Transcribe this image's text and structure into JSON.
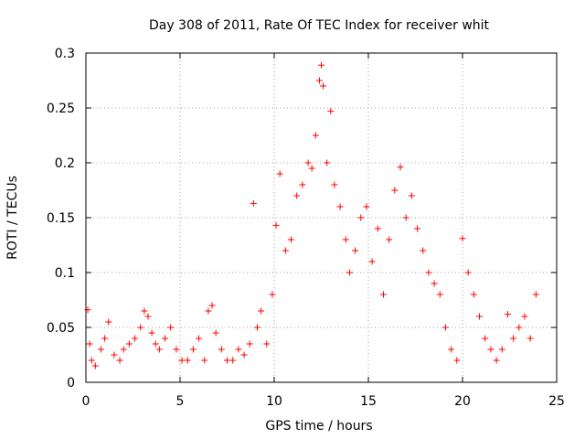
{
  "chart_data": {
    "type": "scatter",
    "title": "Day 308 of 2011, Rate Of TEC Index for receiver whit",
    "xlabel": "GPS time / hours",
    "ylabel": "ROTI / TECUs",
    "xlim": [
      0,
      25
    ],
    "ylim": [
      0,
      0.3
    ],
    "x_ticks": [
      "0",
      "5",
      "10",
      "15",
      "20",
      "25"
    ],
    "y_ticks": [
      "0",
      "0.05",
      "0.1",
      "0.15",
      "0.2",
      "0.25",
      "0.3"
    ],
    "grid": true,
    "marker": "+",
    "color": "#ff0000",
    "series": [
      {
        "x": [
          0.1,
          0.2,
          0.3,
          0.5,
          0.8,
          1.0,
          1.2,
          1.5,
          1.8,
          2.0,
          2.3,
          2.6,
          2.9,
          3.1,
          3.3,
          3.5,
          3.7,
          3.9,
          4.2,
          4.5,
          4.8,
          5.1,
          5.4,
          5.7,
          6.0,
          6.3,
          6.5,
          6.7,
          6.9,
          7.2,
          7.5,
          7.8,
          8.1,
          8.4,
          8.7,
          8.9,
          9.1,
          9.3,
          9.6,
          9.9,
          10.1,
          10.3,
          10.6,
          10.9,
          11.2,
          11.5,
          11.8,
          12.0,
          12.2,
          12.4,
          12.5,
          12.6,
          12.8,
          13.0,
          13.2,
          13.5,
          13.8,
          14.0,
          14.3,
          14.6,
          14.9,
          15.2,
          15.5,
          15.8,
          16.1,
          16.4,
          16.7,
          17.0,
          17.3,
          17.6,
          17.9,
          18.2,
          18.5,
          18.8,
          19.1,
          19.4,
          19.7,
          20.0,
          20.3,
          20.6,
          20.9,
          21.2,
          21.5,
          21.8,
          22.1,
          22.4,
          22.7,
          23.0,
          23.3,
          23.6,
          23.9
        ],
        "y": [
          0.066,
          0.035,
          0.02,
          0.015,
          0.03,
          0.04,
          0.055,
          0.025,
          0.02,
          0.03,
          0.035,
          0.04,
          0.05,
          0.065,
          0.06,
          0.045,
          0.035,
          0.03,
          0.04,
          0.05,
          0.03,
          0.02,
          0.02,
          0.03,
          0.04,
          0.02,
          0.065,
          0.07,
          0.045,
          0.03,
          0.02,
          0.02,
          0.03,
          0.025,
          0.035,
          0.163,
          0.05,
          0.065,
          0.035,
          0.08,
          0.143,
          0.19,
          0.12,
          0.13,
          0.17,
          0.18,
          0.2,
          0.195,
          0.225,
          0.275,
          0.289,
          0.27,
          0.2,
          0.247,
          0.18,
          0.16,
          0.13,
          0.1,
          0.12,
          0.15,
          0.16,
          0.11,
          0.14,
          0.08,
          0.13,
          0.175,
          0.196,
          0.15,
          0.17,
          0.14,
          0.12,
          0.1,
          0.09,
          0.08,
          0.05,
          0.03,
          0.02,
          0.131,
          0.1,
          0.08,
          0.06,
          0.04,
          0.03,
          0.02,
          0.03,
          0.062,
          0.04,
          0.05,
          0.06,
          0.04,
          0.08
        ]
      }
    ]
  }
}
